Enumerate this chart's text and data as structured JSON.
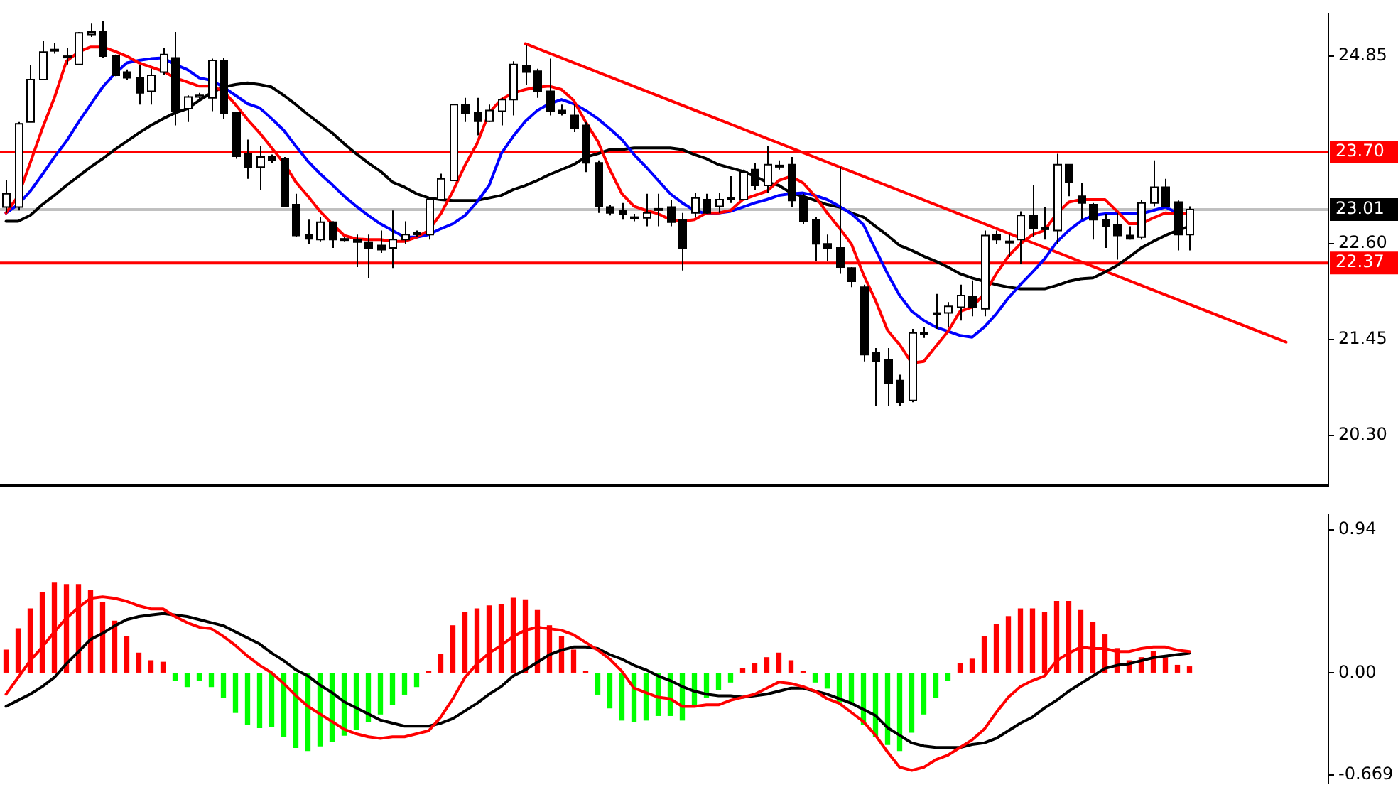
{
  "chart_data": [
    {
      "type": "candlestick",
      "categories": [
        null,
        null,
        null,
        null,
        null,
        null,
        null,
        null,
        null,
        null,
        null,
        null,
        null,
        null,
        null,
        null,
        null,
        null,
        null,
        null,
        null,
        null,
        null,
        null,
        null,
        null,
        null,
        null,
        null,
        null,
        null,
        null,
        null,
        null,
        null,
        null,
        null,
        null,
        null,
        null,
        null,
        null,
        null,
        null,
        null,
        null,
        null,
        null,
        null,
        null,
        null,
        null,
        null,
        null,
        null,
        null,
        null,
        null,
        null,
        null,
        null,
        null,
        null,
        null,
        null,
        null,
        null,
        null,
        null,
        null,
        null,
        null,
        null,
        null,
        null,
        null,
        null,
        null,
        null,
        null,
        null,
        null,
        null,
        null,
        null,
        null,
        null,
        null,
        null,
        null,
        null,
        null,
        null,
        null,
        null,
        null,
        null,
        null,
        null,
        null,
        null,
        null,
        null,
        null,
        null,
        null,
        null,
        null,
        null,
        null
      ],
      "ohlc": [
        [
          23.04,
          23.36,
          22.97,
          23.2
        ],
        [
          23.04,
          24.06,
          23.0,
          24.04
        ],
        [
          24.06,
          24.74,
          24.06,
          24.57
        ],
        [
          24.57,
          25.03,
          24.57,
          24.9
        ],
        [
          24.93,
          25.01,
          24.88,
          24.93
        ],
        [
          24.85,
          24.95,
          24.75,
          24.85
        ],
        [
          24.75,
          25.14,
          24.75,
          25.13
        ],
        [
          25.11,
          25.24,
          25.08,
          25.14
        ],
        [
          25.14,
          25.27,
          24.83,
          24.85
        ],
        [
          24.85,
          24.87,
          24.61,
          24.62
        ],
        [
          24.66,
          24.69,
          24.57,
          24.59
        ],
        [
          24.59,
          24.74,
          24.27,
          24.41
        ],
        [
          24.43,
          24.7,
          24.27,
          24.62
        ],
        [
          24.66,
          24.95,
          24.62,
          24.87
        ],
        [
          24.83,
          25.14,
          24.02,
          24.19
        ],
        [
          24.22,
          24.38,
          24.06,
          24.36
        ],
        [
          24.36,
          24.41,
          24.33,
          24.38
        ],
        [
          24.35,
          24.82,
          24.19,
          24.8
        ],
        [
          24.8,
          24.83,
          24.1,
          24.17
        ],
        [
          24.17,
          24.17,
          23.62,
          23.65
        ],
        [
          23.68,
          23.85,
          23.38,
          23.52
        ],
        [
          23.52,
          23.77,
          23.25,
          23.64
        ],
        [
          23.64,
          23.67,
          23.57,
          23.6
        ],
        [
          23.62,
          23.64,
          23.04,
          23.05
        ],
        [
          23.07,
          23.2,
          22.68,
          22.7
        ],
        [
          22.71,
          22.89,
          22.6,
          22.66
        ],
        [
          22.65,
          22.92,
          22.63,
          22.86
        ],
        [
          22.86,
          22.87,
          22.55,
          22.65
        ],
        [
          22.66,
          22.68,
          22.63,
          22.65
        ],
        [
          22.65,
          22.71,
          22.32,
          22.62
        ],
        [
          22.62,
          22.71,
          22.19,
          22.55
        ],
        [
          22.58,
          22.76,
          22.49,
          22.53
        ],
        [
          22.55,
          23.0,
          22.31,
          22.65
        ],
        [
          22.65,
          22.87,
          22.6,
          22.71
        ],
        [
          22.73,
          22.76,
          22.68,
          22.73
        ],
        [
          22.71,
          23.13,
          22.65,
          23.13
        ],
        [
          23.13,
          23.44,
          23.12,
          23.38
        ],
        [
          23.36,
          24.28,
          23.36,
          24.27
        ],
        [
          24.27,
          24.35,
          24.06,
          24.17
        ],
        [
          24.17,
          24.35,
          23.9,
          24.07
        ],
        [
          24.07,
          24.27,
          24.06,
          24.2
        ],
        [
          24.19,
          24.35,
          24.02,
          24.33
        ],
        [
          24.33,
          24.79,
          24.14,
          24.75
        ],
        [
          24.74,
          24.98,
          24.51,
          24.66
        ],
        [
          24.67,
          24.7,
          24.35,
          24.43
        ],
        [
          24.43,
          24.82,
          24.14,
          24.19
        ],
        [
          24.2,
          24.27,
          24.14,
          24.17
        ],
        [
          24.14,
          24.27,
          23.94,
          23.99
        ],
        [
          24.02,
          24.06,
          23.46,
          23.57
        ],
        [
          23.57,
          23.6,
          22.97,
          23.05
        ],
        [
          23.04,
          23.07,
          22.94,
          22.97
        ],
        [
          23.0,
          23.09,
          22.89,
          22.96
        ],
        [
          22.92,
          22.96,
          22.87,
          22.92
        ],
        [
          22.91,
          23.2,
          22.81,
          22.97
        ],
        [
          23.02,
          23.2,
          22.81,
          23.02
        ],
        [
          23.04,
          23.13,
          22.81,
          22.86
        ],
        [
          22.89,
          22.97,
          22.28,
          22.55
        ],
        [
          22.97,
          23.21,
          22.92,
          23.15
        ],
        [
          23.13,
          23.2,
          22.96,
          22.97
        ],
        [
          23.05,
          23.21,
          22.97,
          23.13
        ],
        [
          23.15,
          23.41,
          23.09,
          23.15
        ],
        [
          23.13,
          23.49,
          23.13,
          23.46
        ],
        [
          23.49,
          23.57,
          23.25,
          23.3
        ],
        [
          23.3,
          23.77,
          23.21,
          23.55
        ],
        [
          23.54,
          23.6,
          23.49,
          23.54
        ],
        [
          23.55,
          23.64,
          23.04,
          23.12
        ],
        [
          23.15,
          23.2,
          22.84,
          22.87
        ],
        [
          22.89,
          22.92,
          22.39,
          22.6
        ],
        [
          22.6,
          22.71,
          22.39,
          22.55
        ],
        [
          22.55,
          23.52,
          22.24,
          22.32
        ],
        [
          22.31,
          22.32,
          22.08,
          22.15
        ],
        [
          22.08,
          22.11,
          21.19,
          21.27
        ],
        [
          21.29,
          21.35,
          20.66,
          21.19
        ],
        [
          21.21,
          21.35,
          20.66,
          20.93
        ],
        [
          20.96,
          21.03,
          20.66,
          20.7
        ],
        [
          20.72,
          21.58,
          20.7,
          21.53
        ],
        [
          21.53,
          21.6,
          21.47,
          21.53
        ],
        [
          21.77,
          22.0,
          21.58,
          21.77
        ],
        [
          21.77,
          21.9,
          21.6,
          21.85
        ],
        [
          21.84,
          22.11,
          21.68,
          21.98
        ],
        [
          21.97,
          22.16,
          21.73,
          21.84
        ],
        [
          21.82,
          22.76,
          21.73,
          22.7
        ],
        [
          22.71,
          22.76,
          22.6,
          22.65
        ],
        [
          22.63,
          22.71,
          22.44,
          22.63
        ],
        [
          22.65,
          22.99,
          22.36,
          22.94
        ],
        [
          22.94,
          23.3,
          22.68,
          22.79
        ],
        [
          22.79,
          23.04,
          22.65,
          22.79
        ],
        [
          22.76,
          23.68,
          22.6,
          23.55
        ],
        [
          23.55,
          23.55,
          23.17,
          23.34
        ],
        [
          23.17,
          23.33,
          22.89,
          23.09
        ],
        [
          23.07,
          23.09,
          22.65,
          22.89
        ],
        [
          22.89,
          22.96,
          22.55,
          22.81
        ],
        [
          22.83,
          22.97,
          22.41,
          22.7
        ],
        [
          22.7,
          22.81,
          22.65,
          22.66
        ],
        [
          22.68,
          23.13,
          22.65,
          23.09
        ],
        [
          23.09,
          23.6,
          23.05,
          23.28
        ],
        [
          23.28,
          23.38,
          23.04,
          23.05
        ],
        [
          23.1,
          23.12,
          22.52,
          22.71
        ],
        [
          22.71,
          23.05,
          22.52,
          23.01
        ],
        null,
        null,
        null,
        null,
        null,
        null,
        null,
        null,
        null,
        null,
        null
      ],
      "series": [
        {
          "type": "line",
          "color": "#ff0000",
          "values": [
            22.97,
            23.17,
            23.57,
            23.98,
            24.35,
            24.79,
            24.9,
            24.96,
            24.96,
            24.91,
            24.85,
            24.77,
            24.72,
            24.67,
            24.59,
            24.54,
            24.49,
            24.49,
            24.43,
            24.27,
            24.09,
            23.93,
            23.75,
            23.57,
            23.34,
            23.17,
            22.99,
            22.84,
            22.7,
            22.66,
            22.65,
            22.65,
            22.63,
            22.63,
            22.68,
            22.76,
            22.96,
            23.23,
            23.54,
            23.8,
            24.17,
            24.33,
            24.41,
            24.45,
            24.48,
            24.49,
            24.45,
            24.32,
            24.06,
            23.83,
            23.49,
            23.2,
            23.05,
            23.0,
            22.96,
            22.89,
            22.87,
            22.89,
            22.97,
            22.97,
            23.0,
            23.13,
            23.18,
            23.23,
            23.36,
            23.41,
            23.33,
            23.17,
            22.97,
            22.79,
            22.6,
            22.23,
            21.92,
            21.56,
            21.39,
            21.17,
            21.19,
            21.37,
            21.55,
            21.79,
            21.84,
            22.0,
            22.24,
            22.45,
            22.6,
            22.71,
            22.76,
            22.96,
            23.1,
            23.13,
            23.13,
            23.13,
            22.99,
            22.84,
            22.84,
            22.91,
            22.97,
            22.96,
            22.97,
            null,
            null,
            null,
            null,
            null,
            null,
            null,
            null,
            null,
            null,
            null
          ]
        },
        {
          "type": "line",
          "color": "#0000ff",
          "values": [
            22.97,
            23.07,
            23.23,
            23.43,
            23.64,
            23.83,
            24.06,
            24.27,
            24.48,
            24.64,
            24.77,
            24.8,
            24.82,
            24.83,
            24.75,
            24.69,
            24.59,
            24.56,
            24.48,
            24.38,
            24.28,
            24.23,
            24.1,
            23.96,
            23.77,
            23.59,
            23.44,
            23.31,
            23.17,
            23.05,
            22.94,
            22.84,
            22.76,
            22.68,
            22.68,
            22.71,
            22.78,
            22.84,
            22.94,
            23.1,
            23.3,
            23.68,
            23.89,
            24.07,
            24.2,
            24.28,
            24.33,
            24.28,
            24.2,
            24.1,
            23.98,
            23.85,
            23.67,
            23.52,
            23.36,
            23.2,
            23.09,
            23.0,
            22.96,
            22.97,
            22.99,
            23.04,
            23.09,
            23.13,
            23.18,
            23.2,
            23.21,
            23.18,
            23.13,
            23.05,
            22.96,
            22.83,
            22.53,
            22.24,
            21.98,
            21.79,
            21.68,
            21.6,
            21.55,
            21.5,
            21.48,
            21.6,
            21.76,
            21.95,
            22.11,
            22.26,
            22.42,
            22.62,
            22.76,
            22.87,
            22.94,
            22.96,
            22.96,
            22.96,
            22.96,
            23.0,
            23.04,
            22.97,
            null,
            null,
            null,
            null,
            null,
            null,
            null,
            null,
            null,
            null,
            null,
            null
          ]
        },
        {
          "type": "line",
          "color": "#000000",
          "values": [
            22.87,
            22.87,
            22.94,
            23.07,
            23.18,
            23.3,
            23.41,
            23.52,
            23.62,
            23.73,
            23.83,
            23.93,
            24.02,
            24.1,
            24.17,
            24.22,
            24.32,
            24.41,
            24.48,
            24.51,
            24.53,
            24.51,
            24.48,
            24.38,
            24.27,
            24.15,
            24.04,
            23.93,
            23.8,
            23.68,
            23.57,
            23.47,
            23.34,
            23.28,
            23.2,
            23.15,
            23.13,
            23.12,
            23.12,
            23.12,
            23.15,
            23.18,
            23.25,
            23.3,
            23.36,
            23.43,
            23.49,
            23.55,
            23.64,
            23.68,
            23.73,
            23.73,
            23.75,
            23.75,
            23.75,
            23.75,
            23.73,
            23.67,
            23.62,
            23.55,
            23.51,
            23.47,
            23.41,
            23.34,
            23.3,
            23.21,
            23.17,
            23.12,
            23.07,
            23.04,
            22.97,
            22.92,
            22.81,
            22.7,
            22.58,
            22.52,
            22.45,
            22.39,
            22.32,
            22.24,
            22.19,
            22.15,
            22.11,
            22.08,
            22.06,
            22.06,
            22.06,
            22.1,
            22.15,
            22.18,
            22.19,
            22.26,
            22.34,
            22.44,
            22.55,
            22.63,
            22.7,
            22.76,
            22.81,
            null,
            null,
            null,
            null,
            null,
            null,
            null,
            null,
            null,
            null,
            null
          ]
        },
        {
          "type": "line",
          "color": "#ff0000",
          "values": [
            null,
            null,
            null,
            null,
            null,
            null,
            null,
            null,
            null,
            null,
            null,
            null,
            null,
            null,
            null,
            null,
            null,
            null,
            null,
            null,
            null,
            null,
            null,
            null,
            null,
            null,
            null,
            null,
            null,
            null,
            null,
            null,
            null,
            null,
            null,
            null,
            null,
            null,
            null,
            null,
            null,
            null,
            null,
            25.0,
            null,
            null,
            null,
            null,
            null,
            null,
            null,
            null,
            null,
            null,
            null,
            null,
            null,
            null,
            null,
            null,
            null,
            null,
            null,
            null,
            null,
            null,
            null,
            null,
            null,
            null,
            null,
            null,
            null,
            null,
            null,
            null,
            null,
            null,
            null,
            null,
            null,
            null,
            null,
            null,
            null,
            null,
            null,
            null,
            null,
            null,
            null,
            null,
            null,
            null,
            null,
            null,
            null,
            null,
            null,
            null,
            null,
            null,
            null,
            null,
            null,
            null,
            21.42,
            null,
            null,
            null
          ]
        }
      ],
      "ref_lines": [
        {
          "axis": "y",
          "value": 23.7,
          "label": "23.70",
          "color": "#ff0000"
        },
        {
          "axis": "y",
          "value": 23.01,
          "label": "23.01",
          "color": "#c0c0c0"
        },
        {
          "axis": "y",
          "value": 22.37,
          "label": "22.37",
          "color": "#ff0000"
        }
      ],
      "ylim": [
        19.7,
        25.35
      ],
      "yticks": [
        {
          "value": 20.3,
          "label": "20.30"
        },
        {
          "value": 21.45,
          "label": "21.45"
        },
        {
          "value": 22.6,
          "label": "22.60"
        },
        {
          "value": 24.85,
          "label": "24.85"
        }
      ],
      "grid": false,
      "legend": false,
      "tick_labels": "y",
      "marker": "none"
    },
    {
      "type": "bar",
      "categories": [
        null,
        null,
        null,
        null,
        null,
        null,
        null,
        null,
        null,
        null,
        null,
        null,
        null,
        null,
        null,
        null,
        null,
        null,
        null,
        null,
        null,
        null,
        null,
        null,
        null,
        null,
        null,
        null,
        null,
        null,
        null,
        null,
        null,
        null,
        null,
        null,
        null,
        null,
        null,
        null,
        null,
        null,
        null,
        null,
        null,
        null,
        null,
        null,
        null,
        null,
        null,
        null,
        null,
        null,
        null,
        null,
        null,
        null,
        null,
        null,
        null,
        null,
        null,
        null,
        null,
        null,
        null,
        null,
        null,
        null,
        null,
        null,
        null,
        null,
        null,
        null,
        null,
        null,
        null,
        null,
        null,
        null,
        null,
        null,
        null,
        null,
        null,
        null,
        null,
        null,
        null,
        null,
        null,
        null,
        null,
        null,
        null,
        null,
        null,
        null,
        null,
        null,
        null,
        null,
        null,
        null,
        null,
        null,
        null,
        null
      ],
      "series": [
        {
          "type": "bar",
          "values": [
            0.15,
            0.29,
            0.42,
            0.53,
            0.59,
            0.58,
            0.58,
            0.54,
            0.46,
            0.34,
            0.24,
            0.13,
            0.08,
            0.07,
            -0.05,
            -0.09,
            -0.05,
            -0.09,
            -0.16,
            -0.26,
            -0.34,
            -0.36,
            -0.35,
            -0.42,
            -0.49,
            -0.51,
            -0.48,
            -0.45,
            -0.41,
            -0.37,
            -0.32,
            -0.27,
            -0.21,
            -0.14,
            -0.09,
            0.01,
            0.12,
            0.31,
            0.4,
            0.42,
            0.44,
            0.45,
            0.49,
            0.48,
            0.41,
            0.31,
            0.24,
            0.15,
            0.01,
            -0.14,
            -0.23,
            -0.31,
            -0.32,
            -0.31,
            -0.28,
            -0.28,
            -0.31,
            -0.21,
            -0.16,
            -0.11,
            -0.06,
            0.03,
            0.06,
            0.1,
            0.13,
            0.08,
            0.01,
            -0.06,
            -0.1,
            -0.19,
            -0.2,
            -0.34,
            -0.42,
            -0.47,
            -0.51,
            -0.39,
            -0.27,
            -0.16,
            -0.05,
            0.06,
            0.09,
            0.24,
            0.32,
            0.37,
            0.42,
            0.42,
            0.4,
            0.47,
            0.47,
            0.41,
            0.33,
            0.25,
            0.16,
            0.08,
            0.1,
            0.14,
            0.1,
            0.05,
            0.04,
            null,
            null,
            null,
            null,
            null,
            null,
            null,
            null,
            null,
            null,
            null
          ],
          "colors": [
            "#ff0000",
            "#ff0000",
            "#ff0000",
            "#ff0000",
            "#ff0000",
            "#ff0000",
            "#ff0000",
            "#ff0000",
            "#ff0000",
            "#ff0000",
            "#ff0000",
            "#ff0000",
            "#ff0000",
            "#ff0000",
            "#00ff00",
            "#00ff00",
            "#00ff00",
            "#00ff00",
            "#00ff00",
            "#00ff00",
            "#00ff00",
            "#00ff00",
            "#00ff00",
            "#00ff00",
            "#00ff00",
            "#00ff00",
            "#00ff00",
            "#00ff00",
            "#00ff00",
            "#00ff00",
            "#00ff00",
            "#00ff00",
            "#00ff00",
            "#00ff00",
            "#00ff00",
            "#ff0000",
            "#ff0000",
            "#ff0000",
            "#ff0000",
            "#ff0000",
            "#ff0000",
            "#ff0000",
            "#ff0000",
            "#ff0000",
            "#ff0000",
            "#ff0000",
            "#ff0000",
            "#ff0000",
            "#ff0000",
            "#00ff00",
            "#00ff00",
            "#00ff00",
            "#00ff00",
            "#00ff00",
            "#00ff00",
            "#00ff00",
            "#00ff00",
            "#00ff00",
            "#00ff00",
            "#00ff00",
            "#00ff00",
            "#ff0000",
            "#ff0000",
            "#ff0000",
            "#ff0000",
            "#ff0000",
            "#ff0000",
            "#00ff00",
            "#00ff00",
            "#00ff00",
            "#00ff00",
            "#00ff00",
            "#00ff00",
            "#00ff00",
            "#00ff00",
            "#00ff00",
            "#00ff00",
            "#00ff00",
            "#00ff00",
            "#ff0000",
            "#ff0000",
            "#ff0000",
            "#ff0000",
            "#ff0000",
            "#ff0000",
            "#ff0000",
            "#ff0000",
            "#ff0000",
            "#ff0000",
            "#ff0000",
            "#ff0000",
            "#ff0000",
            "#ff0000",
            "#ff0000",
            "#ff0000",
            "#ff0000",
            "#ff0000",
            "#ff0000",
            "#ff0000",
            null,
            null,
            null,
            null,
            null,
            null,
            null,
            null,
            null,
            null,
            null
          ]
        },
        {
          "type": "line",
          "color": "#ff0000",
          "values": [
            -0.14,
            -0.03,
            0.08,
            0.17,
            0.27,
            0.36,
            0.43,
            0.49,
            0.5,
            0.49,
            0.47,
            0.44,
            0.42,
            0.42,
            0.37,
            0.33,
            0.3,
            0.29,
            0.24,
            0.18,
            0.11,
            0.05,
            0.0,
            -0.07,
            -0.15,
            -0.22,
            -0.27,
            -0.32,
            -0.37,
            -0.4,
            -0.42,
            -0.43,
            -0.42,
            -0.42,
            -0.4,
            -0.38,
            -0.29,
            -0.17,
            -0.03,
            0.06,
            0.13,
            0.18,
            0.24,
            0.28,
            0.3,
            0.29,
            0.28,
            0.25,
            0.2,
            0.15,
            0.09,
            0.01,
            -0.1,
            -0.13,
            -0.16,
            -0.17,
            -0.22,
            -0.22,
            -0.21,
            -0.21,
            -0.18,
            -0.16,
            -0.14,
            -0.1,
            -0.06,
            -0.07,
            -0.09,
            -0.12,
            -0.17,
            -0.2,
            -0.26,
            -0.32,
            -0.41,
            -0.52,
            -0.62,
            -0.64,
            -0.62,
            -0.57,
            -0.54,
            -0.49,
            -0.44,
            -0.37,
            -0.26,
            -0.16,
            -0.09,
            -0.05,
            -0.02,
            0.08,
            0.13,
            0.17,
            0.16,
            0.16,
            0.14,
            0.14,
            0.16,
            0.17,
            0.17,
            0.15,
            0.14,
            null,
            null,
            null,
            null,
            null,
            null,
            null,
            null,
            null,
            null,
            null
          ]
        },
        {
          "type": "line",
          "color": "#000000",
          "values": [
            -0.22,
            -0.18,
            -0.14,
            -0.09,
            -0.03,
            0.06,
            0.14,
            0.22,
            0.26,
            0.31,
            0.35,
            0.37,
            0.38,
            0.39,
            0.38,
            0.37,
            0.35,
            0.33,
            0.31,
            0.27,
            0.23,
            0.19,
            0.13,
            0.08,
            0.02,
            -0.02,
            -0.08,
            -0.13,
            -0.19,
            -0.23,
            -0.27,
            -0.31,
            -0.33,
            -0.35,
            -0.35,
            -0.35,
            -0.33,
            -0.3,
            -0.25,
            -0.2,
            -0.14,
            -0.09,
            -0.02,
            0.02,
            0.07,
            0.12,
            0.15,
            0.17,
            0.17,
            0.16,
            0.12,
            0.09,
            0.05,
            0.02,
            -0.02,
            -0.05,
            -0.09,
            -0.12,
            -0.14,
            -0.15,
            -0.15,
            -0.16,
            -0.15,
            -0.14,
            -0.12,
            -0.1,
            -0.1,
            -0.12,
            -0.14,
            -0.17,
            -0.2,
            -0.24,
            -0.28,
            -0.36,
            -0.41,
            -0.46,
            -0.48,
            -0.49,
            -0.49,
            -0.49,
            -0.47,
            -0.46,
            -0.43,
            -0.38,
            -0.33,
            -0.29,
            -0.23,
            -0.18,
            -0.12,
            -0.07,
            -0.02,
            0.03,
            0.05,
            0.06,
            0.08,
            0.1,
            0.11,
            0.12,
            0.13,
            null,
            null,
            null,
            null,
            null,
            null,
            null,
            null,
            null,
            null,
            null
          ]
        }
      ],
      "ylim": [
        -0.72,
        1.04
      ],
      "yticks": [
        0.94,
        {
          "value": 0,
          "label": "0.00"
        },
        -0.669
      ],
      "grid": false,
      "legend": false,
      "tick_labels": "y",
      "marker": "none"
    }
  ]
}
